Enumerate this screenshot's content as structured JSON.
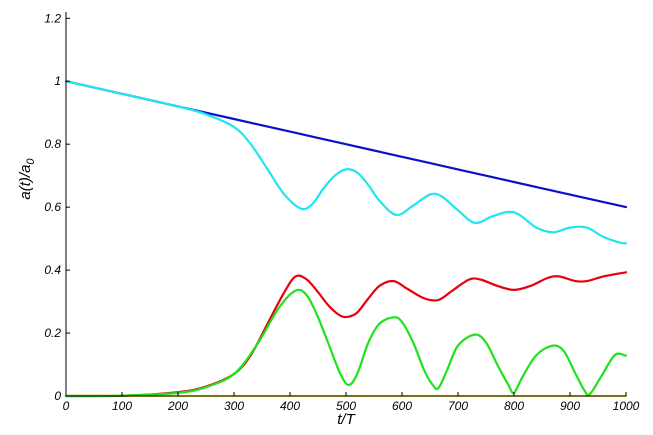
{
  "chart_data": {
    "type": "line",
    "title": "",
    "xlabel": "t/T",
    "ylabel_main": "a(t)/a",
    "ylabel_sub": "0",
    "xlim": [
      0,
      1000
    ],
    "ylim": [
      0,
      1.22
    ],
    "xticks": [
      0,
      100,
      200,
      300,
      400,
      500,
      600,
      700,
      800,
      900,
      1000
    ],
    "xtick_labels": [
      "0",
      "100",
      "200",
      "300",
      "400",
      "500",
      "600",
      "700",
      "800",
      "900",
      "1000"
    ],
    "yticks": [
      0,
      0.2,
      0.4,
      0.6,
      0.8,
      1,
      1.2
    ],
    "ytick_labels": [
      "0",
      "0.2",
      "0.4",
      "0.6",
      "0.8",
      "1",
      "1.2"
    ],
    "grid": false,
    "legend": "none",
    "series": [
      {
        "color": "#0a12c8",
        "x": [
          0,
          100,
          200,
          300,
          400,
          500,
          600,
          700,
          800,
          900,
          1000
        ],
        "y": [
          1.0,
          0.96,
          0.92,
          0.88,
          0.84,
          0.8,
          0.76,
          0.72,
          0.68,
          0.64,
          0.6
        ]
      },
      {
        "color": "#1ee6f0",
        "x": [
          0,
          100,
          200,
          250,
          300,
          330,
          360,
          390,
          420,
          440,
          460,
          480,
          500,
          520,
          540,
          560,
          590,
          620,
          650,
          670,
          700,
          730,
          760,
          790,
          810,
          840,
          870,
          900,
          930,
          960,
          990,
          1000
        ],
        "y": [
          1.0,
          0.96,
          0.92,
          0.895,
          0.855,
          0.8,
          0.72,
          0.64,
          0.595,
          0.61,
          0.66,
          0.7,
          0.72,
          0.71,
          0.67,
          0.62,
          0.575,
          0.605,
          0.64,
          0.635,
          0.59,
          0.55,
          0.57,
          0.585,
          0.575,
          0.535,
          0.52,
          0.535,
          0.535,
          0.505,
          0.487,
          0.485
        ]
      },
      {
        "color": "#e8000b",
        "x": [
          0,
          100,
          200,
          250,
          300,
          330,
          360,
          390,
          410,
          430,
          450,
          470,
          490,
          505,
          520,
          540,
          560,
          585,
          610,
          640,
          665,
          690,
          720,
          740,
          770,
          800,
          830,
          860,
          880,
          910,
          930,
          960,
          1000
        ],
        "y": [
          0.0,
          0.001,
          0.012,
          0.03,
          0.07,
          0.13,
          0.23,
          0.33,
          0.38,
          0.37,
          0.33,
          0.285,
          0.255,
          0.252,
          0.265,
          0.31,
          0.35,
          0.365,
          0.34,
          0.31,
          0.305,
          0.335,
          0.37,
          0.37,
          0.35,
          0.337,
          0.35,
          0.375,
          0.38,
          0.365,
          0.365,
          0.38,
          0.393
        ]
      },
      {
        "color": "#1de21d",
        "x": [
          0,
          100,
          200,
          250,
          300,
          340,
          380,
          410,
          430,
          450,
          470,
          490,
          505,
          520,
          540,
          560,
          585,
          600,
          620,
          640,
          655,
          665,
          680,
          700,
          730,
          750,
          770,
          790,
          800,
          815,
          840,
          870,
          890,
          910,
          925,
          935,
          955,
          980,
          1000
        ],
        "y": [
          0.0,
          0.001,
          0.01,
          0.028,
          0.07,
          0.16,
          0.28,
          0.335,
          0.32,
          0.25,
          0.16,
          0.07,
          0.035,
          0.07,
          0.17,
          0.23,
          0.25,
          0.235,
          0.17,
          0.08,
          0.035,
          0.025,
          0.08,
          0.16,
          0.195,
          0.17,
          0.1,
          0.035,
          0.01,
          0.06,
          0.13,
          0.16,
          0.14,
          0.07,
          0.02,
          0.005,
          0.06,
          0.13,
          0.128
        ]
      },
      {
        "color": "#f5e14a",
        "x": [
          0,
          200,
          400,
          600,
          800,
          1000
        ],
        "y": [
          0.0,
          0.0,
          0.0,
          0.0,
          0.0,
          0.0
        ]
      }
    ]
  }
}
